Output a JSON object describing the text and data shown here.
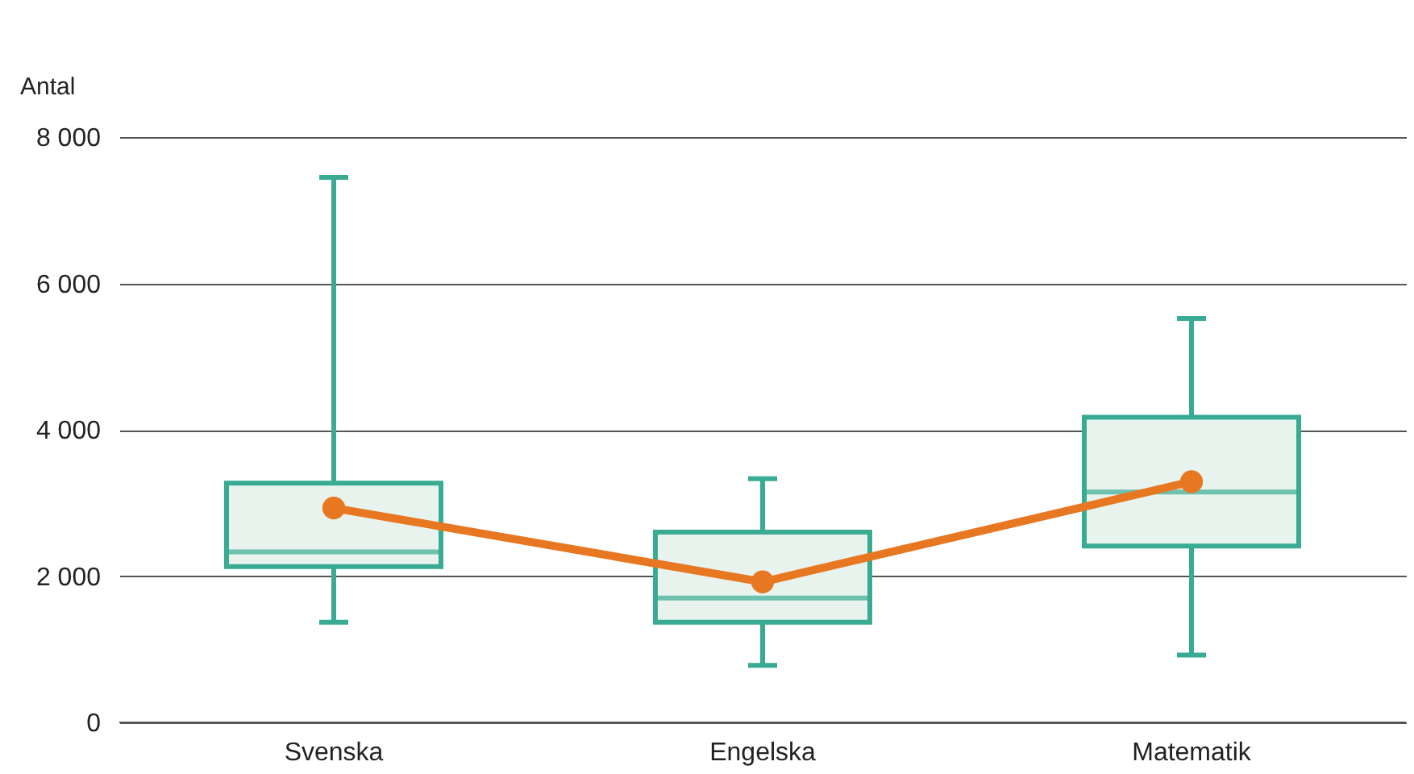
{
  "chart_data": {
    "type": "box",
    "ylabel": "Antal",
    "categories": [
      "Svenska",
      "Engelska",
      "Matematik"
    ],
    "ylim": [
      0,
      8000
    ],
    "yticks": [
      {
        "value": 0,
        "label": "0"
      },
      {
        "value": 2000,
        "label": "2 000"
      },
      {
        "value": 4000,
        "label": "4 000"
      },
      {
        "value": 6000,
        "label": "6 000"
      },
      {
        "value": 8000,
        "label": "8 000"
      }
    ],
    "grid": "y",
    "series": [
      {
        "type": "box",
        "color": "#3aab93",
        "boxes": [
          {
            "low": 1370,
            "q1": 2130,
            "median": 2330,
            "q3": 3270,
            "high": 7450
          },
          {
            "low": 780,
            "q1": 1370,
            "median": 1700,
            "q3": 2600,
            "high": 3330
          },
          {
            "low": 920,
            "q1": 2410,
            "median": 3150,
            "q3": 4170,
            "high": 5520
          }
        ]
      },
      {
        "type": "line",
        "color": "#e87722",
        "marker": "circle",
        "values": [
          2930,
          1920,
          3290
        ]
      }
    ]
  }
}
